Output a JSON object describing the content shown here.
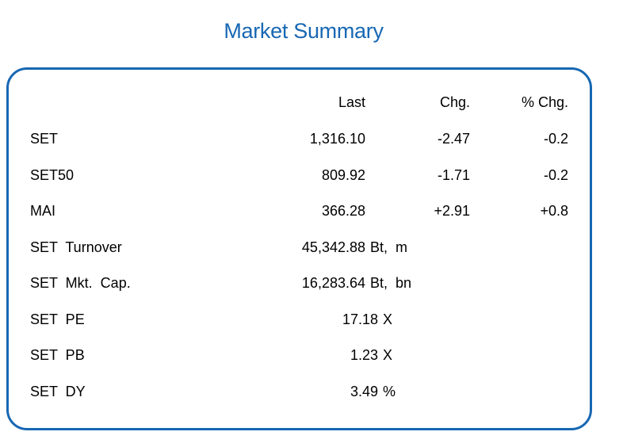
{
  "title": "Market Summary",
  "colors": {
    "accent": "#1767b3"
  },
  "header": {
    "last": "Last",
    "chg": "Chg.",
    "pct": "% Chg."
  },
  "rows": [
    {
      "label": "SET",
      "last": "1,316.10",
      "unit": "",
      "chg": "-2.47",
      "pct": "-0.2"
    },
    {
      "label": "SET50",
      "last": "809.92",
      "unit": "",
      "chg": "-1.71",
      "pct": "-0.2"
    },
    {
      "label": "MAI",
      "last": "366.28",
      "unit": "",
      "chg": "+2.91",
      "pct": "+0.8"
    },
    {
      "label": "SET  Turnover",
      "last": "45,342.88",
      "unit": "Bt,  m",
      "chg": "",
      "pct": ""
    },
    {
      "label": "SET  Mkt.  Cap.",
      "last": "16,283.64",
      "unit": "Bt,  bn",
      "chg": "",
      "pct": ""
    },
    {
      "label": "SET  PE",
      "last": "17.18",
      "unit": "X",
      "chg": "",
      "pct": ""
    },
    {
      "label": "SET  PB",
      "last": "1.23",
      "unit": "X",
      "chg": "",
      "pct": ""
    },
    {
      "label": "SET  DY",
      "last": "3.49",
      "unit": "%",
      "chg": "",
      "pct": ""
    }
  ]
}
